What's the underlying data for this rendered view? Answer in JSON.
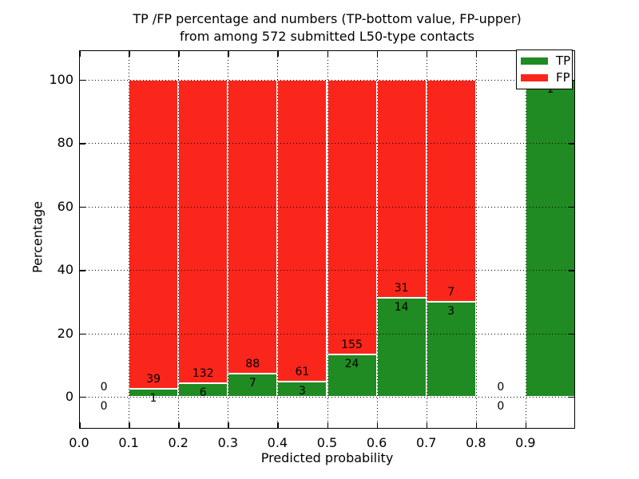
{
  "chart_data": {
    "type": "stacked_bar",
    "title": "TP /FP percentage and numbers (TP-bottom value, FP-upper) from among 572 submitted L50-type contacts",
    "title_lines": [
      "TP /FP percentage and numbers (TP-bottom value, FP-upper)",
      "from among 572 submitted L50-type contacts"
    ],
    "xlabel": "Predicted probability",
    "ylabel": "Percentage",
    "xlim": [
      0.0,
      1.0
    ],
    "ylim": [
      -10.1,
      109.3
    ],
    "xticks": [
      {
        "v": 0.0,
        "label": "0.0"
      },
      {
        "v": 0.1,
        "label": "0.1"
      },
      {
        "v": 0.2,
        "label": "0.2"
      },
      {
        "v": 0.3,
        "label": "0.3"
      },
      {
        "v": 0.4,
        "label": "0.4"
      },
      {
        "v": 0.5,
        "label": "0.5"
      },
      {
        "v": 0.6,
        "label": "0.6"
      },
      {
        "v": 0.7,
        "label": "0.7"
      },
      {
        "v": 0.8,
        "label": "0.8"
      },
      {
        "v": 0.9,
        "label": "0.9"
      }
    ],
    "yticks": [
      {
        "v": 0,
        "label": "0"
      },
      {
        "v": 20,
        "label": "20"
      },
      {
        "v": 40,
        "label": "40"
      },
      {
        "v": 60,
        "label": "60"
      },
      {
        "v": 80,
        "label": "80"
      },
      {
        "v": 100,
        "label": "100"
      }
    ],
    "grid": {
      "style": "dotted",
      "color": "#000000",
      "drawn_over_bars": true
    },
    "colors": {
      "tp": "#208b22",
      "fp": "#fb261b"
    },
    "legend": {
      "position": "upper-right",
      "entries": [
        {
          "name": "TP",
          "color_key": "tp"
        },
        {
          "name": "FP",
          "color_key": "fp"
        }
      ]
    },
    "bar_unit": "percent of bin total (TP bottom, FP on top, stacks sum to 100%)",
    "bins": [
      {
        "range": [
          0.0,
          0.1
        ],
        "tp": 0,
        "fp": 0,
        "tp_label": "0",
        "fp_label": "0",
        "has_bar": false
      },
      {
        "range": [
          0.1,
          0.2
        ],
        "tp": 1,
        "fp": 39,
        "tp_label": "1",
        "fp_label": "39",
        "has_bar": true
      },
      {
        "range": [
          0.2,
          0.3
        ],
        "tp": 6,
        "fp": 132,
        "tp_label": "6",
        "fp_label": "132",
        "has_bar": true
      },
      {
        "range": [
          0.3,
          0.4
        ],
        "tp": 7,
        "fp": 88,
        "tp_label": "7",
        "fp_label": "88",
        "has_bar": true
      },
      {
        "range": [
          0.4,
          0.5
        ],
        "tp": 3,
        "fp": 61,
        "tp_label": "3",
        "fp_label": "61",
        "has_bar": true
      },
      {
        "range": [
          0.5,
          0.6
        ],
        "tp": 24,
        "fp": 155,
        "tp_label": "24",
        "fp_label": "155",
        "has_bar": true
      },
      {
        "range": [
          0.6,
          0.7
        ],
        "tp": 14,
        "fp": 31,
        "tp_label": "14",
        "fp_label": "31",
        "has_bar": true
      },
      {
        "range": [
          0.7,
          0.8
        ],
        "tp": 3,
        "fp": 7,
        "tp_label": "3",
        "fp_label": "7",
        "has_bar": true
      },
      {
        "range": [
          0.8,
          0.9
        ],
        "tp": 0,
        "fp": 0,
        "tp_label": "0",
        "fp_label": "0",
        "has_bar": false
      },
      {
        "range": [
          0.9,
          1.0
        ],
        "tp": 1,
        "fp": 0,
        "tp_label": "1",
        "fp_label": "",
        "has_bar": true
      }
    ]
  }
}
